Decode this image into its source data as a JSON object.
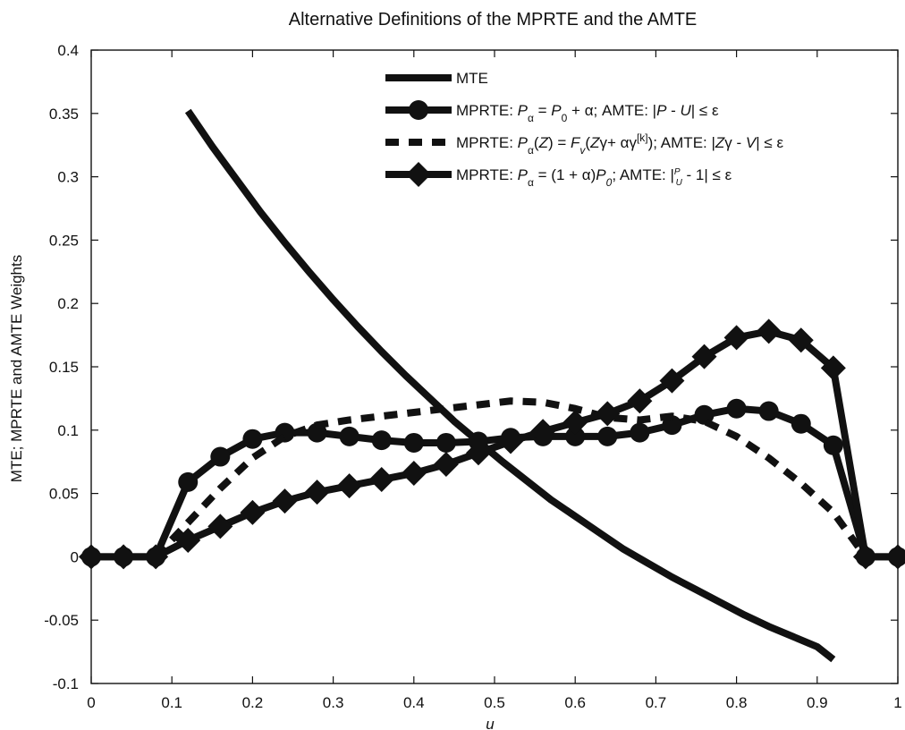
{
  "chart_data": {
    "type": "line",
    "title": "Alternative Definitions of the MPRTE and the AMTE",
    "xlabel": "u",
    "ylabel": "MTE; MPRTE and AMTE Weights",
    "xlim": [
      0,
      1
    ],
    "ylim": [
      -0.1,
      0.4
    ],
    "grid": false,
    "legend_position": "top-right",
    "x_ticks": [
      "0",
      "0.1",
      "0.2",
      "0.3",
      "0.4",
      "0.5",
      "0.6",
      "0.7",
      "0.8",
      "0.9",
      "1"
    ],
    "y_ticks": [
      "-0.1",
      "-0.05",
      "0",
      "0.05",
      "0.1",
      "0.15",
      "0.2",
      "0.25",
      "0.3",
      "0.35",
      "0.4"
    ],
    "legend": [
      {
        "name": "MTE",
        "segments": [
          {
            "text": "MTE",
            "italic": false
          }
        ]
      },
      {
        "name": "MPRTE: Pα = P0 + α; AMTE: |P - U| ≤ ε",
        "segments": [
          {
            "text": "MPRTE: ",
            "italic": false
          },
          {
            "text": "P",
            "italic": true
          },
          {
            "text": "α",
            "italic": false,
            "sub": true
          },
          {
            "text": " = ",
            "italic": false
          },
          {
            "text": "P",
            "italic": true
          },
          {
            "text": "0",
            "italic": false,
            "sub": true
          },
          {
            "text": " + α; AMTE: |",
            "italic": false
          },
          {
            "text": "P",
            "italic": true
          },
          {
            "text": " - ",
            "italic": false
          },
          {
            "text": "U",
            "italic": true
          },
          {
            "text": "| ≤ ε",
            "italic": false
          }
        ]
      },
      {
        "name": "MPRTE: Pα(Z) = Fv(Zγ + αγ[k]); AMTE: |Zγ - V| ≤ ε",
        "segments": [
          {
            "text": "MPRTE: ",
            "italic": false
          },
          {
            "text": "P",
            "italic": true
          },
          {
            "text": "α",
            "italic": false,
            "sub": true
          },
          {
            "text": "(",
            "italic": false
          },
          {
            "text": "Z",
            "italic": true
          },
          {
            "text": ") = ",
            "italic": false
          },
          {
            "text": "F",
            "italic": true
          },
          {
            "text": "v",
            "italic": true,
            "sub": true
          },
          {
            "text": "(",
            "italic": false
          },
          {
            "text": "Z",
            "italic": true
          },
          {
            "text": "γ+ αγ",
            "italic": false
          },
          {
            "text": "[k]",
            "italic": false,
            "sup": true
          },
          {
            "text": "); AMTE: |",
            "italic": false
          },
          {
            "text": "Z",
            "italic": true
          },
          {
            "text": "γ - ",
            "italic": false
          },
          {
            "text": "V",
            "italic": true
          },
          {
            "text": "| ≤ ε",
            "italic": false
          }
        ]
      },
      {
        "name": "MPRTE: Pα = (1 + α)P0; AMTE: |P/U - 1| ≤ ε",
        "segments": [
          {
            "text": "MPRTE: ",
            "italic": false
          },
          {
            "text": "P",
            "italic": true
          },
          {
            "text": "α",
            "italic": false,
            "sub": true
          },
          {
            "text": " = (1 + α)",
            "italic": false
          },
          {
            "text": "P",
            "italic": true
          },
          {
            "text": "0",
            "italic": true,
            "sub": true
          },
          {
            "text": "; AMTE: |",
            "italic": false
          },
          {
            "text": "P/U",
            "italic": true,
            "frac": true
          },
          {
            "text": " - 1| ≤ ε",
            "italic": false
          }
        ]
      }
    ],
    "series": [
      {
        "name": "MTE",
        "style": "solid",
        "marker": "none",
        "color": "#111111",
        "x": [
          0.12,
          0.15,
          0.18,
          0.21,
          0.24,
          0.27,
          0.3,
          0.33,
          0.36,
          0.39,
          0.42,
          0.45,
          0.48,
          0.51,
          0.54,
          0.57,
          0.6,
          0.63,
          0.66,
          0.69,
          0.72,
          0.75,
          0.78,
          0.81,
          0.84,
          0.87,
          0.9,
          0.92
        ],
        "y": [
          0.352,
          0.324,
          0.298,
          0.272,
          0.248,
          0.225,
          0.203,
          0.182,
          0.162,
          0.143,
          0.125,
          0.107,
          0.091,
          0.075,
          0.06,
          0.045,
          0.032,
          0.019,
          0.006,
          -0.005,
          -0.016,
          -0.026,
          -0.036,
          -0.046,
          -0.055,
          -0.063,
          -0.071,
          -0.081
        ]
      },
      {
        "name": "MPRTE: Pα = P0 + α; AMTE: |P - U| ≤ ε",
        "style": "solid",
        "marker": "circle",
        "color": "#111111",
        "x": [
          0,
          0.04,
          0.08,
          0.12,
          0.16,
          0.2,
          0.24,
          0.28,
          0.32,
          0.36,
          0.4,
          0.44,
          0.48,
          0.52,
          0.56,
          0.6,
          0.64,
          0.68,
          0.72,
          0.76,
          0.8,
          0.84,
          0.88,
          0.92,
          0.96,
          1
        ],
        "y": [
          0,
          0,
          0,
          0.059,
          0.079,
          0.093,
          0.098,
          0.098,
          0.095,
          0.092,
          0.09,
          0.09,
          0.091,
          0.094,
          0.095,
          0.095,
          0.095,
          0.098,
          0.104,
          0.112,
          0.117,
          0.115,
          0.105,
          0.088,
          0,
          0
        ]
      },
      {
        "name": "MPRTE: Pα(Z) = Fv(Zγ + αγ[k]); AMTE: |Zγ - V| ≤ ε",
        "style": "dashed",
        "marker": "none",
        "color": "#111111",
        "x": [
          0.08,
          0.12,
          0.16,
          0.2,
          0.24,
          0.28,
          0.32,
          0.36,
          0.4,
          0.44,
          0.48,
          0.52,
          0.56,
          0.6,
          0.64,
          0.68,
          0.72,
          0.76,
          0.8,
          0.84,
          0.88,
          0.92,
          0.96
        ],
        "y": [
          0,
          0.027,
          0.054,
          0.078,
          0.095,
          0.104,
          0.108,
          0.111,
          0.114,
          0.117,
          0.12,
          0.123,
          0.122,
          0.117,
          0.11,
          0.108,
          0.111,
          0.107,
          0.095,
          0.078,
          0.058,
          0.035,
          0
        ]
      },
      {
        "name": "MPRTE: Pα = (1 + α)P0; AMTE: |P/U - 1| ≤ ε",
        "style": "solid",
        "marker": "diamond",
        "color": "#111111",
        "x": [
          0,
          0.04,
          0.08,
          0.12,
          0.16,
          0.2,
          0.24,
          0.28,
          0.32,
          0.36,
          0.4,
          0.44,
          0.48,
          0.52,
          0.56,
          0.6,
          0.64,
          0.68,
          0.72,
          0.76,
          0.8,
          0.84,
          0.88,
          0.92,
          0.96,
          1
        ],
        "y": [
          0,
          0,
          0,
          0.013,
          0.024,
          0.035,
          0.044,
          0.051,
          0.056,
          0.061,
          0.066,
          0.073,
          0.082,
          0.091,
          0.099,
          0.106,
          0.113,
          0.123,
          0.139,
          0.158,
          0.173,
          0.178,
          0.171,
          0.149,
          0,
          0
        ]
      }
    ]
  }
}
